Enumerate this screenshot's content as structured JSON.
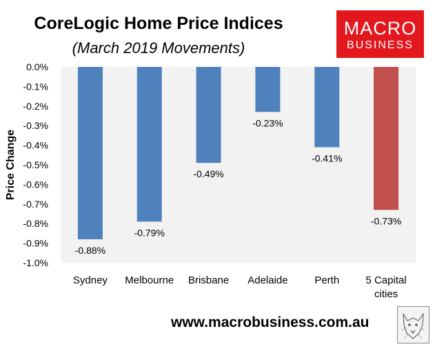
{
  "header": {
    "title": "CoreLogic Home Price Indices",
    "subtitle": "(March 2019 Movements)"
  },
  "logo": {
    "line1": "MACRO",
    "line2": "BUSINESS",
    "color": "#e3181e"
  },
  "footer": {
    "url": "www.macrobusiness.com.au",
    "mascot_icon": "wolf-sketch-icon"
  },
  "chart_data": {
    "type": "bar",
    "title": "CoreLogic Home Price Indices",
    "subtitle": "(March 2019 Movements)",
    "xlabel": "",
    "ylabel": "Price Change",
    "ylim": [
      -1.0,
      0.0
    ],
    "yticks": [
      "0.0%",
      "-0.1%",
      "-0.2%",
      "-0.3%",
      "-0.4%",
      "-0.5%",
      "-0.6%",
      "-0.7%",
      "-0.8%",
      "-0.9%",
      "-1.0%"
    ],
    "categories": [
      [
        "Sydney"
      ],
      [
        "Melbourne"
      ],
      [
        "Brisbane"
      ],
      [
        "Adelaide"
      ],
      [
        "Perth"
      ],
      [
        "5 Capital",
        "cities"
      ]
    ],
    "values": [
      -0.88,
      -0.79,
      -0.49,
      -0.23,
      -0.41,
      -0.73
    ],
    "data_labels": [
      "-0.88%",
      "-0.79%",
      "-0.49%",
      "-0.23%",
      "-0.41%",
      "-0.73%"
    ],
    "colors": [
      "#4f81bd",
      "#4f81bd",
      "#4f81bd",
      "#4f81bd",
      "#4f81bd",
      "#c0504d"
    ],
    "plot_background": "#f2f2f2",
    "grid": false,
    "legend": "none"
  }
}
